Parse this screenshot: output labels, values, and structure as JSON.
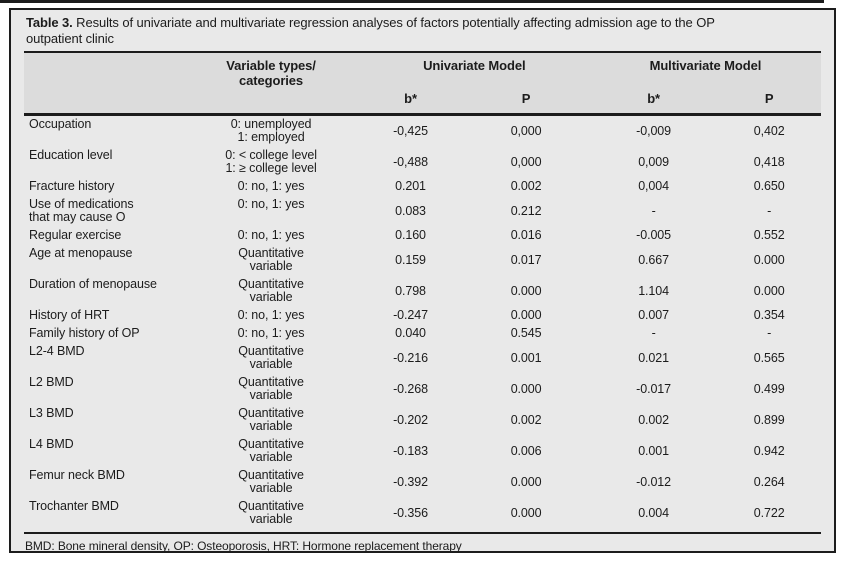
{
  "colors": {
    "page_bg": "#ffffff",
    "frame_bg": "#e9e9e9",
    "band_bg": "#dcdcdc",
    "line": "#1c1c1c",
    "text": "#1c1c1c"
  },
  "title": {
    "label": "Table 3.",
    "text": " Results of univariate and multivariate regression analyses of factors potentially affecting admission age to the OP outpatient clinic"
  },
  "table": {
    "headers": {
      "variable_types": "Variable types/\ncategories",
      "univariate_model": "Univariate Model",
      "multivariate_model": "Multivariate Model",
      "b_label": "b*",
      "p_label": "P"
    },
    "rows": [
      {
        "variable": "Occupation",
        "categories": "0: unemployed\n1: employed",
        "uni_b": "-0,425",
        "uni_p": "0,000",
        "multi_b": "-0,009",
        "multi_p": "0,402"
      },
      {
        "variable": "Education level",
        "categories": "0: < college level\n1: ≥ college level",
        "uni_b": "-0,488",
        "uni_p": "0,000",
        "multi_b": "0,009",
        "multi_p": "0,418"
      },
      {
        "variable": "Fracture history",
        "categories": "0: no, 1: yes",
        "uni_b": "0.201",
        "uni_p": "0.002",
        "multi_b": "0,004",
        "multi_p": "0.650"
      },
      {
        "variable": "Use of medications\nthat may cause O",
        "categories": "0: no, 1: yes",
        "uni_b": "0.083",
        "uni_p": "0.212",
        "multi_b": "-",
        "multi_p": "-"
      },
      {
        "variable": "Regular exercise",
        "categories": "0: no, 1: yes",
        "uni_b": "0.160",
        "uni_p": "0.016",
        "multi_b": "-0.005",
        "multi_p": "0.552"
      },
      {
        "variable": "Age at menopause",
        "categories": "Quantitative\nvariable",
        "uni_b": "0.159",
        "uni_p": "0.017",
        "multi_b": "0.667",
        "multi_p": "0.000"
      },
      {
        "variable": "Duration of menopause",
        "categories": "Quantitative\nvariable",
        "uni_b": "0.798",
        "uni_p": "0.000",
        "multi_b": "1.104",
        "multi_p": "0.000"
      },
      {
        "variable": "History of HRT",
        "categories": "0: no, 1: yes",
        "uni_b": "-0.247",
        "uni_p": "0.000",
        "multi_b": "0.007",
        "multi_p": "0.354"
      },
      {
        "variable": "Family history of OP",
        "categories": "0: no, 1: yes",
        "uni_b": "0.040",
        "uni_p": "0.545",
        "multi_b": "-",
        "multi_p": "-"
      },
      {
        "variable": "L2-4 BMD",
        "categories": "Quantitative\nvariable",
        "uni_b": "-0.216",
        "uni_p": "0.001",
        "multi_b": "0.021",
        "multi_p": "0.565"
      },
      {
        "variable": "L2 BMD",
        "categories": "Quantitative\nvariable",
        "uni_b": "-0.268",
        "uni_p": "0.000",
        "multi_b": "-0.017",
        "multi_p": "0.499"
      },
      {
        "variable": "L3 BMD",
        "categories": "Quantitative\nvariable",
        "uni_b": "-0.202",
        "uni_p": "0.002",
        "multi_b": "0.002",
        "multi_p": "0.899"
      },
      {
        "variable": "L4 BMD",
        "categories": "Quantitative\nvariable",
        "uni_b": "-0.183",
        "uni_p": "0.006",
        "multi_b": "0.001",
        "multi_p": "0.942"
      },
      {
        "variable": "Femur neck BMD",
        "categories": "Quantitative\nvariable",
        "uni_b": "-0.392",
        "uni_p": "0.000",
        "multi_b": "-0.012",
        "multi_p": "0.264"
      },
      {
        "variable": "Trochanter BMD",
        "categories": "Quantitative\nvariable",
        "uni_b": "-0.356",
        "uni_p": "0.000",
        "multi_b": "0.004",
        "multi_p": "0.722"
      }
    ]
  },
  "footnote": "BMD: Bone mineral density, OP: Osteoporosis, HRT: Hormone replacement therapy"
}
